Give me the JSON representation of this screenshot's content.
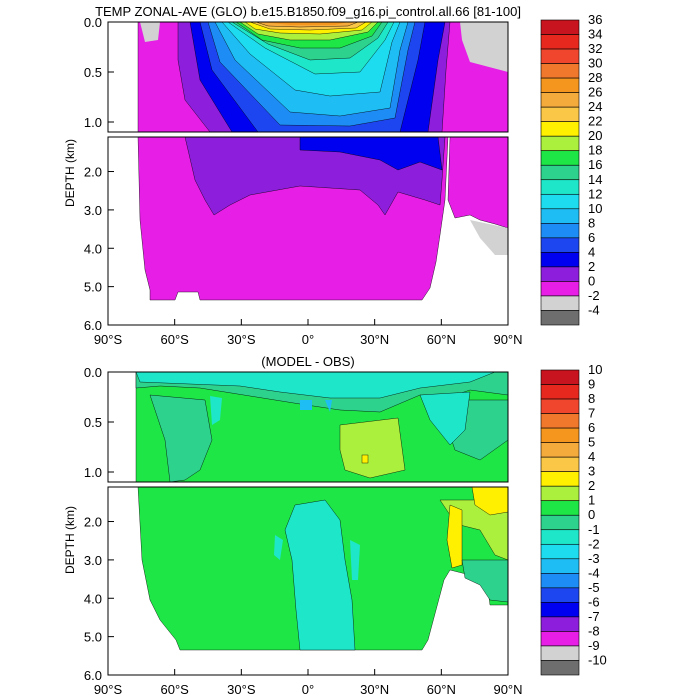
{
  "chart_data": [
    {
      "type": "heatmap",
      "title": "TEMP ZONAL-AVE (GLO) b.e15.B1850.f09_g16.pi_control.all.66 [81-100]",
      "ylabel": "DEPTH (km)",
      "xlabel": "",
      "xlim": [
        -90,
        90
      ],
      "ylim_upper_panel": [
        0.0,
        1.1
      ],
      "ylim_lower_panel": [
        1.1,
        6.0
      ],
      "x_tick_labels": [
        "90°S",
        "60°S",
        "30°S",
        "0°",
        "30°N",
        "60°N",
        "90°N"
      ],
      "y_tick_labels": [
        "0.0",
        "0.5",
        "1.0",
        "2.0",
        "3.0",
        "4.0",
        "5.0",
        "6.0"
      ],
      "colorbar_labels": [
        "36",
        "34",
        "32",
        "30",
        "28",
        "26",
        "24",
        "22",
        "20",
        "18",
        "16",
        "14",
        "12",
        "10",
        "8",
        "6",
        "4",
        "2",
        "0",
        "-2",
        "-4"
      ],
      "colorbar_colors": [
        "#c8141e",
        "#e6281e",
        "#f0462d",
        "#f0782d",
        "#f5961e",
        "#f5aa3c",
        "#fac846",
        "#fff000",
        "#aaf03c",
        "#1ee646",
        "#2dd28c",
        "#1ee6c8",
        "#1edcf0",
        "#1ebef5",
        "#1e8cf5",
        "#1e46f0",
        "#0000f0",
        "#8c1edc",
        "#e61ee6",
        "#d2d2d2",
        "#6e6e6e"
      ],
      "colorbar_note": "first 20 colours fill the top 20 cells; the last two are the bottom cells"
    },
    {
      "type": "heatmap",
      "title": "(MODEL - OBS)",
      "ylabel": "DEPTH (km)",
      "xlabel": "",
      "xlim": [
        -90,
        90
      ],
      "ylim_upper_panel": [
        0.0,
        1.1
      ],
      "ylim_lower_panel": [
        1.1,
        6.0
      ],
      "x_tick_labels": [
        "90°S",
        "60°S",
        "30°S",
        "0°",
        "30°N",
        "60°N",
        "90°N"
      ],
      "y_tick_labels": [
        "0.0",
        "0.5",
        "1.0",
        "2.0",
        "3.0",
        "4.0",
        "5.0",
        "6.0"
      ],
      "colorbar_labels": [
        "10",
        "9",
        "8",
        "7",
        "6",
        "5",
        "4",
        "3",
        "2",
        "1",
        "0",
        "-1",
        "-2",
        "-3",
        "-4",
        "-5",
        "-6",
        "-7",
        "-8",
        "-9",
        "-10"
      ],
      "colorbar_colors": [
        "#c8141e",
        "#e6281e",
        "#f0462d",
        "#f0782d",
        "#f5961e",
        "#f5aa3c",
        "#fac846",
        "#fff000",
        "#aaf03c",
        "#1ee646",
        "#2dd28c",
        "#1ee6c8",
        "#1edcf0",
        "#1ebef5",
        "#1e8cf5",
        "#1e46f0",
        "#0000f0",
        "#8c1edc",
        "#e61ee6",
        "#d2d2d2",
        "#6e6e6e"
      ]
    }
  ]
}
